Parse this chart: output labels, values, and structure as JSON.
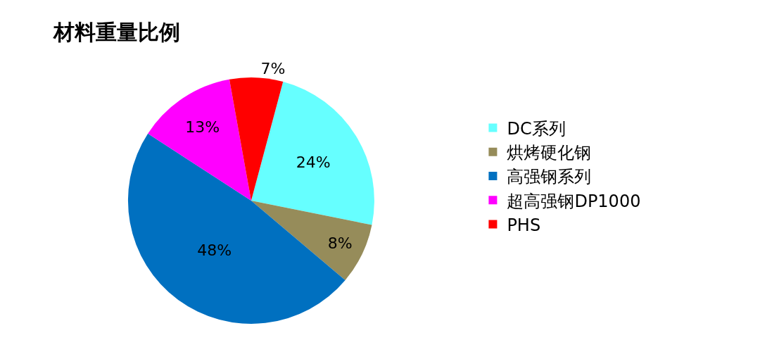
{
  "chart_data": {
    "type": "pie",
    "title": "材料重量比例",
    "categories": [
      "DC系列",
      "烘烤硬化钢",
      "高强钢系列",
      "超高强钢DP1000",
      "PHS"
    ],
    "values": [
      24,
      8,
      48,
      13,
      7
    ],
    "colors": [
      "#66ffff",
      "#968c5a",
      "#0070c0",
      "#ff00ff",
      "#ff0000"
    ],
    "value_labels": [
      "24%",
      "8%",
      "48%",
      "13%",
      "7%"
    ],
    "legend": "right"
  }
}
